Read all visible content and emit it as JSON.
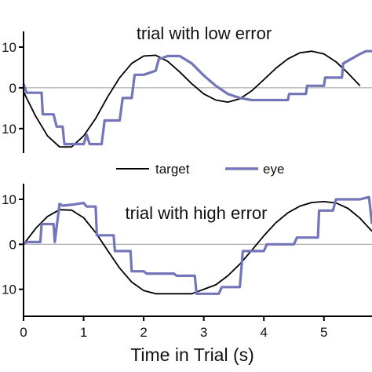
{
  "chart_data": [
    {
      "type": "line",
      "title": "trial with low error",
      "xlabel": "",
      "ylabel": "",
      "xlim": [
        0,
        5.8
      ],
      "ylim": [
        -16,
        10
      ],
      "yticks": [
        10,
        0,
        -10
      ],
      "ytick_labels": [
        "10",
        "0",
        "10"
      ],
      "reference_line": 0,
      "series": [
        {
          "name": "target",
          "color": "#000000",
          "x": [
            0,
            0.2,
            0.4,
            0.6,
            0.8,
            1.0,
            1.2,
            1.4,
            1.6,
            1.8,
            2.0,
            2.2,
            2.4,
            2.6,
            2.8,
            3.0,
            3.2,
            3.4,
            3.6,
            3.8,
            4.0,
            4.2,
            4.4,
            4.6,
            4.8,
            5.0,
            5.2,
            5.4,
            5.6
          ],
          "y": [
            -1,
            -6.9,
            -11.8,
            -14.5,
            -14.5,
            -11.8,
            -7.5,
            -2.2,
            2.5,
            6.0,
            7.8,
            8.0,
            6.5,
            3.9,
            1.0,
            -1.5,
            -3.0,
            -3.5,
            -2.7,
            -0.7,
            2.0,
            4.8,
            7.1,
            8.6,
            9.0,
            8.3,
            6.4,
            3.6,
            0.5
          ]
        },
        {
          "name": "eye",
          "color": "#7276b8",
          "x": [
            0,
            0.05,
            0.1,
            0.3,
            0.32,
            0.5,
            0.55,
            0.65,
            0.68,
            1.0,
            1.05,
            1.1,
            1.3,
            1.35,
            1.6,
            1.65,
            1.8,
            1.85,
            2.0,
            2.2,
            2.25,
            2.4,
            2.6,
            2.8,
            3.0,
            3.2,
            3.4,
            3.6,
            3.8,
            4.0,
            4.2,
            4.4,
            4.42,
            4.7,
            4.72,
            5.0,
            5.02,
            5.3,
            5.32,
            5.6,
            5.7,
            5.8
          ],
          "y": [
            1,
            -1.2,
            -1.2,
            -1.2,
            -6.5,
            -6.5,
            -9.5,
            -9.5,
            -13.8,
            -13.8,
            -11.5,
            -13.8,
            -13.8,
            -8,
            -8,
            -2.5,
            -2.5,
            3.2,
            3.2,
            4.2,
            7.0,
            7.8,
            7.8,
            6.0,
            3.0,
            0.5,
            -1.5,
            -2.5,
            -3.0,
            -3.0,
            -3.0,
            -3.0,
            -1.5,
            -1.5,
            0.5,
            0.5,
            2.5,
            2.5,
            6.0,
            8.3,
            9.0,
            9.0
          ]
        }
      ]
    },
    {
      "type": "line",
      "title": "trial with high error",
      "xlabel": "Time in Trial (s)",
      "ylabel": "",
      "xlim": [
        0,
        5.8
      ],
      "ylim": [
        -16,
        10
      ],
      "xticks": [
        0,
        1,
        2,
        3,
        4,
        5
      ],
      "xtick_labels": [
        "0",
        "1",
        "2",
        "3",
        "4",
        "5"
      ],
      "yticks": [
        10,
        0,
        -10
      ],
      "ytick_labels": [
        "10",
        "0",
        "10"
      ],
      "reference_line": 0,
      "series": [
        {
          "name": "target",
          "color": "#000000",
          "x": [
            0,
            0.2,
            0.4,
            0.6,
            0.8,
            1.0,
            1.2,
            1.4,
            1.6,
            1.8,
            2.0,
            2.2,
            2.4,
            2.6,
            2.8,
            3.0,
            3.2,
            3.4,
            3.6,
            3.8,
            4.0,
            4.2,
            4.4,
            4.6,
            4.8,
            5.0,
            5.2,
            5.4,
            5.6,
            5.8
          ],
          "y": [
            0,
            3.5,
            6.2,
            7.7,
            7.6,
            5.9,
            2.6,
            -1.4,
            -5.3,
            -8.4,
            -10.3,
            -11.0,
            -11.0,
            -11.0,
            -11.0,
            -10.0,
            -9.0,
            -7.0,
            -4.4,
            -1.3,
            1.9,
            4.8,
            7.0,
            8.5,
            9.3,
            9.5,
            9.2,
            8.0,
            5.8,
            2.9
          ]
        },
        {
          "name": "eye",
          "color": "#7276b8",
          "x": [
            0,
            0.05,
            0.28,
            0.3,
            0.5,
            0.52,
            0.6,
            0.65,
            0.8,
            1.0,
            1.05,
            1.2,
            1.22,
            1.5,
            1.52,
            1.78,
            1.8,
            2.0,
            2.05,
            2.5,
            2.55,
            2.85,
            2.88,
            3.25,
            3.3,
            3.6,
            3.65,
            4.0,
            4.05,
            4.5,
            4.55,
            4.9,
            4.92,
            5.15,
            5.2,
            5.6,
            5.75,
            5.8
          ],
          "y": [
            0,
            0.5,
            0.5,
            4.5,
            4.5,
            0.5,
            9.0,
            8.6,
            8.8,
            9.2,
            8.4,
            8.4,
            2.0,
            2.0,
            -1.5,
            -1.5,
            -6.0,
            -6.0,
            -6.5,
            -6.5,
            -7.0,
            -7.0,
            -11.0,
            -11.0,
            -9.5,
            -9.5,
            -1.5,
            -1.5,
            0.0,
            0.0,
            1.5,
            1.5,
            7.5,
            7.5,
            10.0,
            10.0,
            10.5,
            4.5
          ]
        }
      ]
    }
  ]
}
